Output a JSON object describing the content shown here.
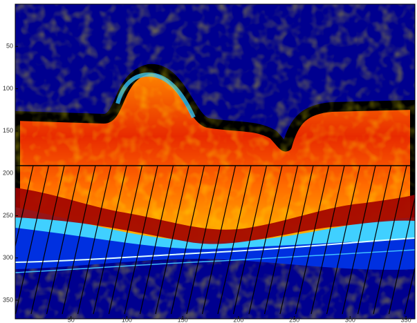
{
  "chart_data": {
    "type": "image",
    "xlim": [
      0,
      358
    ],
    "xticks": [
      50,
      100,
      150,
      200,
      250,
      300,
      350
    ],
    "ylim": [
      0,
      372
    ],
    "yticks": [
      50,
      100,
      150,
      200,
      250,
      300,
      350
    ],
    "y_reversed": true
  }
}
